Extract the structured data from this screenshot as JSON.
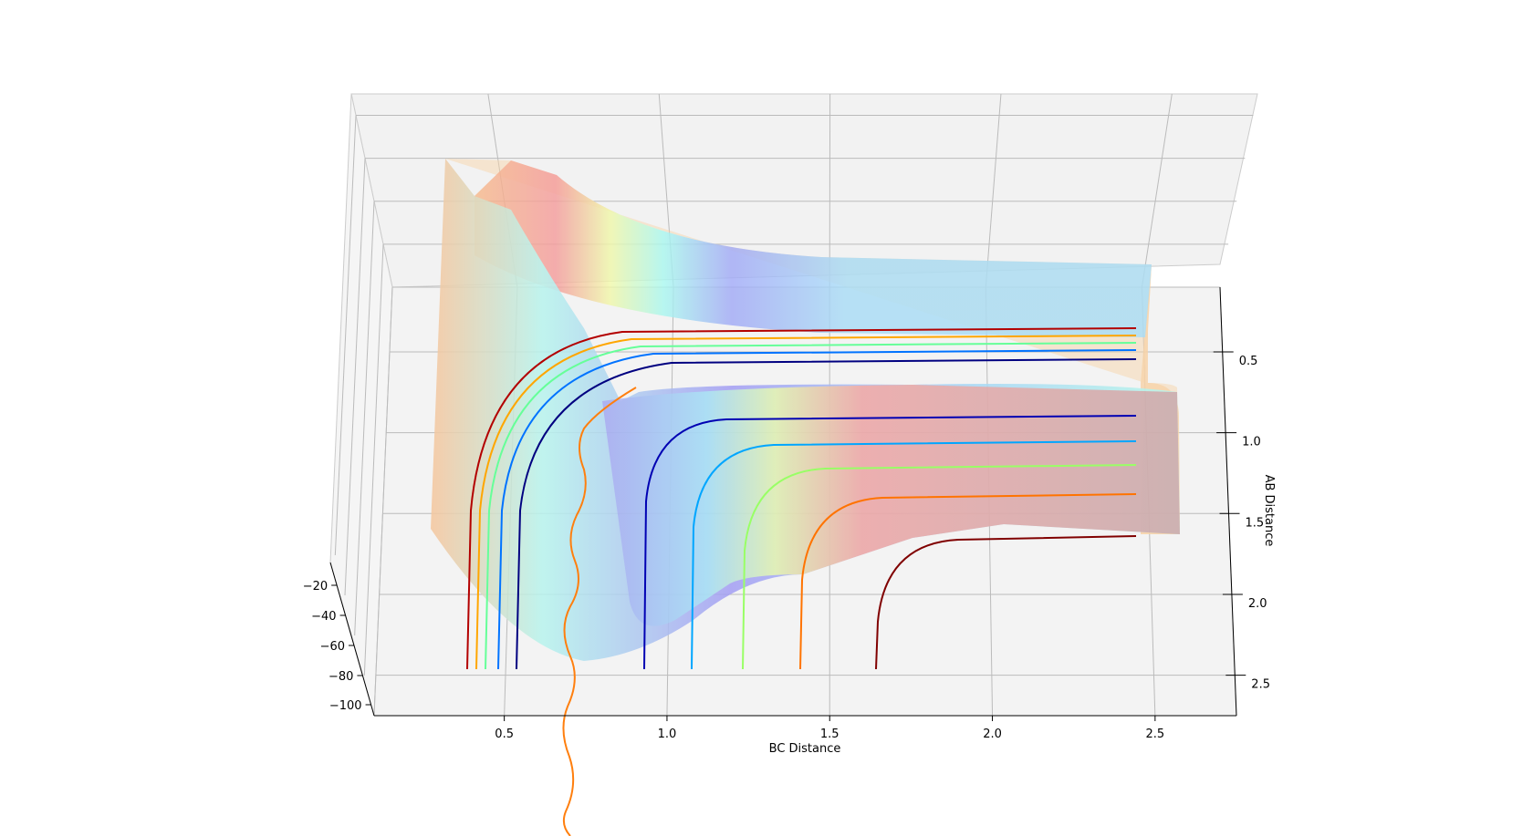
{
  "chart_data": {
    "type": "surface-3d-with-contours",
    "xlabel": "BC Distance",
    "ylabel": "AB Distance",
    "zlabel": "",
    "x_ticks": [
      "0.5",
      "1.0",
      "1.5",
      "2.0",
      "2.5"
    ],
    "y_ticks": [
      "0.5",
      "1.0",
      "1.5",
      "2.0",
      "2.5"
    ],
    "z_ticks": [
      "−20",
      "−40",
      "−60",
      "−80",
      "−100"
    ],
    "xlim": [
      0.1,
      2.75
    ],
    "ylim": [
      0.1,
      2.75
    ],
    "zlim": [
      -100,
      -10
    ],
    "grid": true,
    "surface_colormap": "jet",
    "contour_colormap": "jet",
    "trajectory_color": "#ff7f0e",
    "contour_levels_count": 9
  }
}
